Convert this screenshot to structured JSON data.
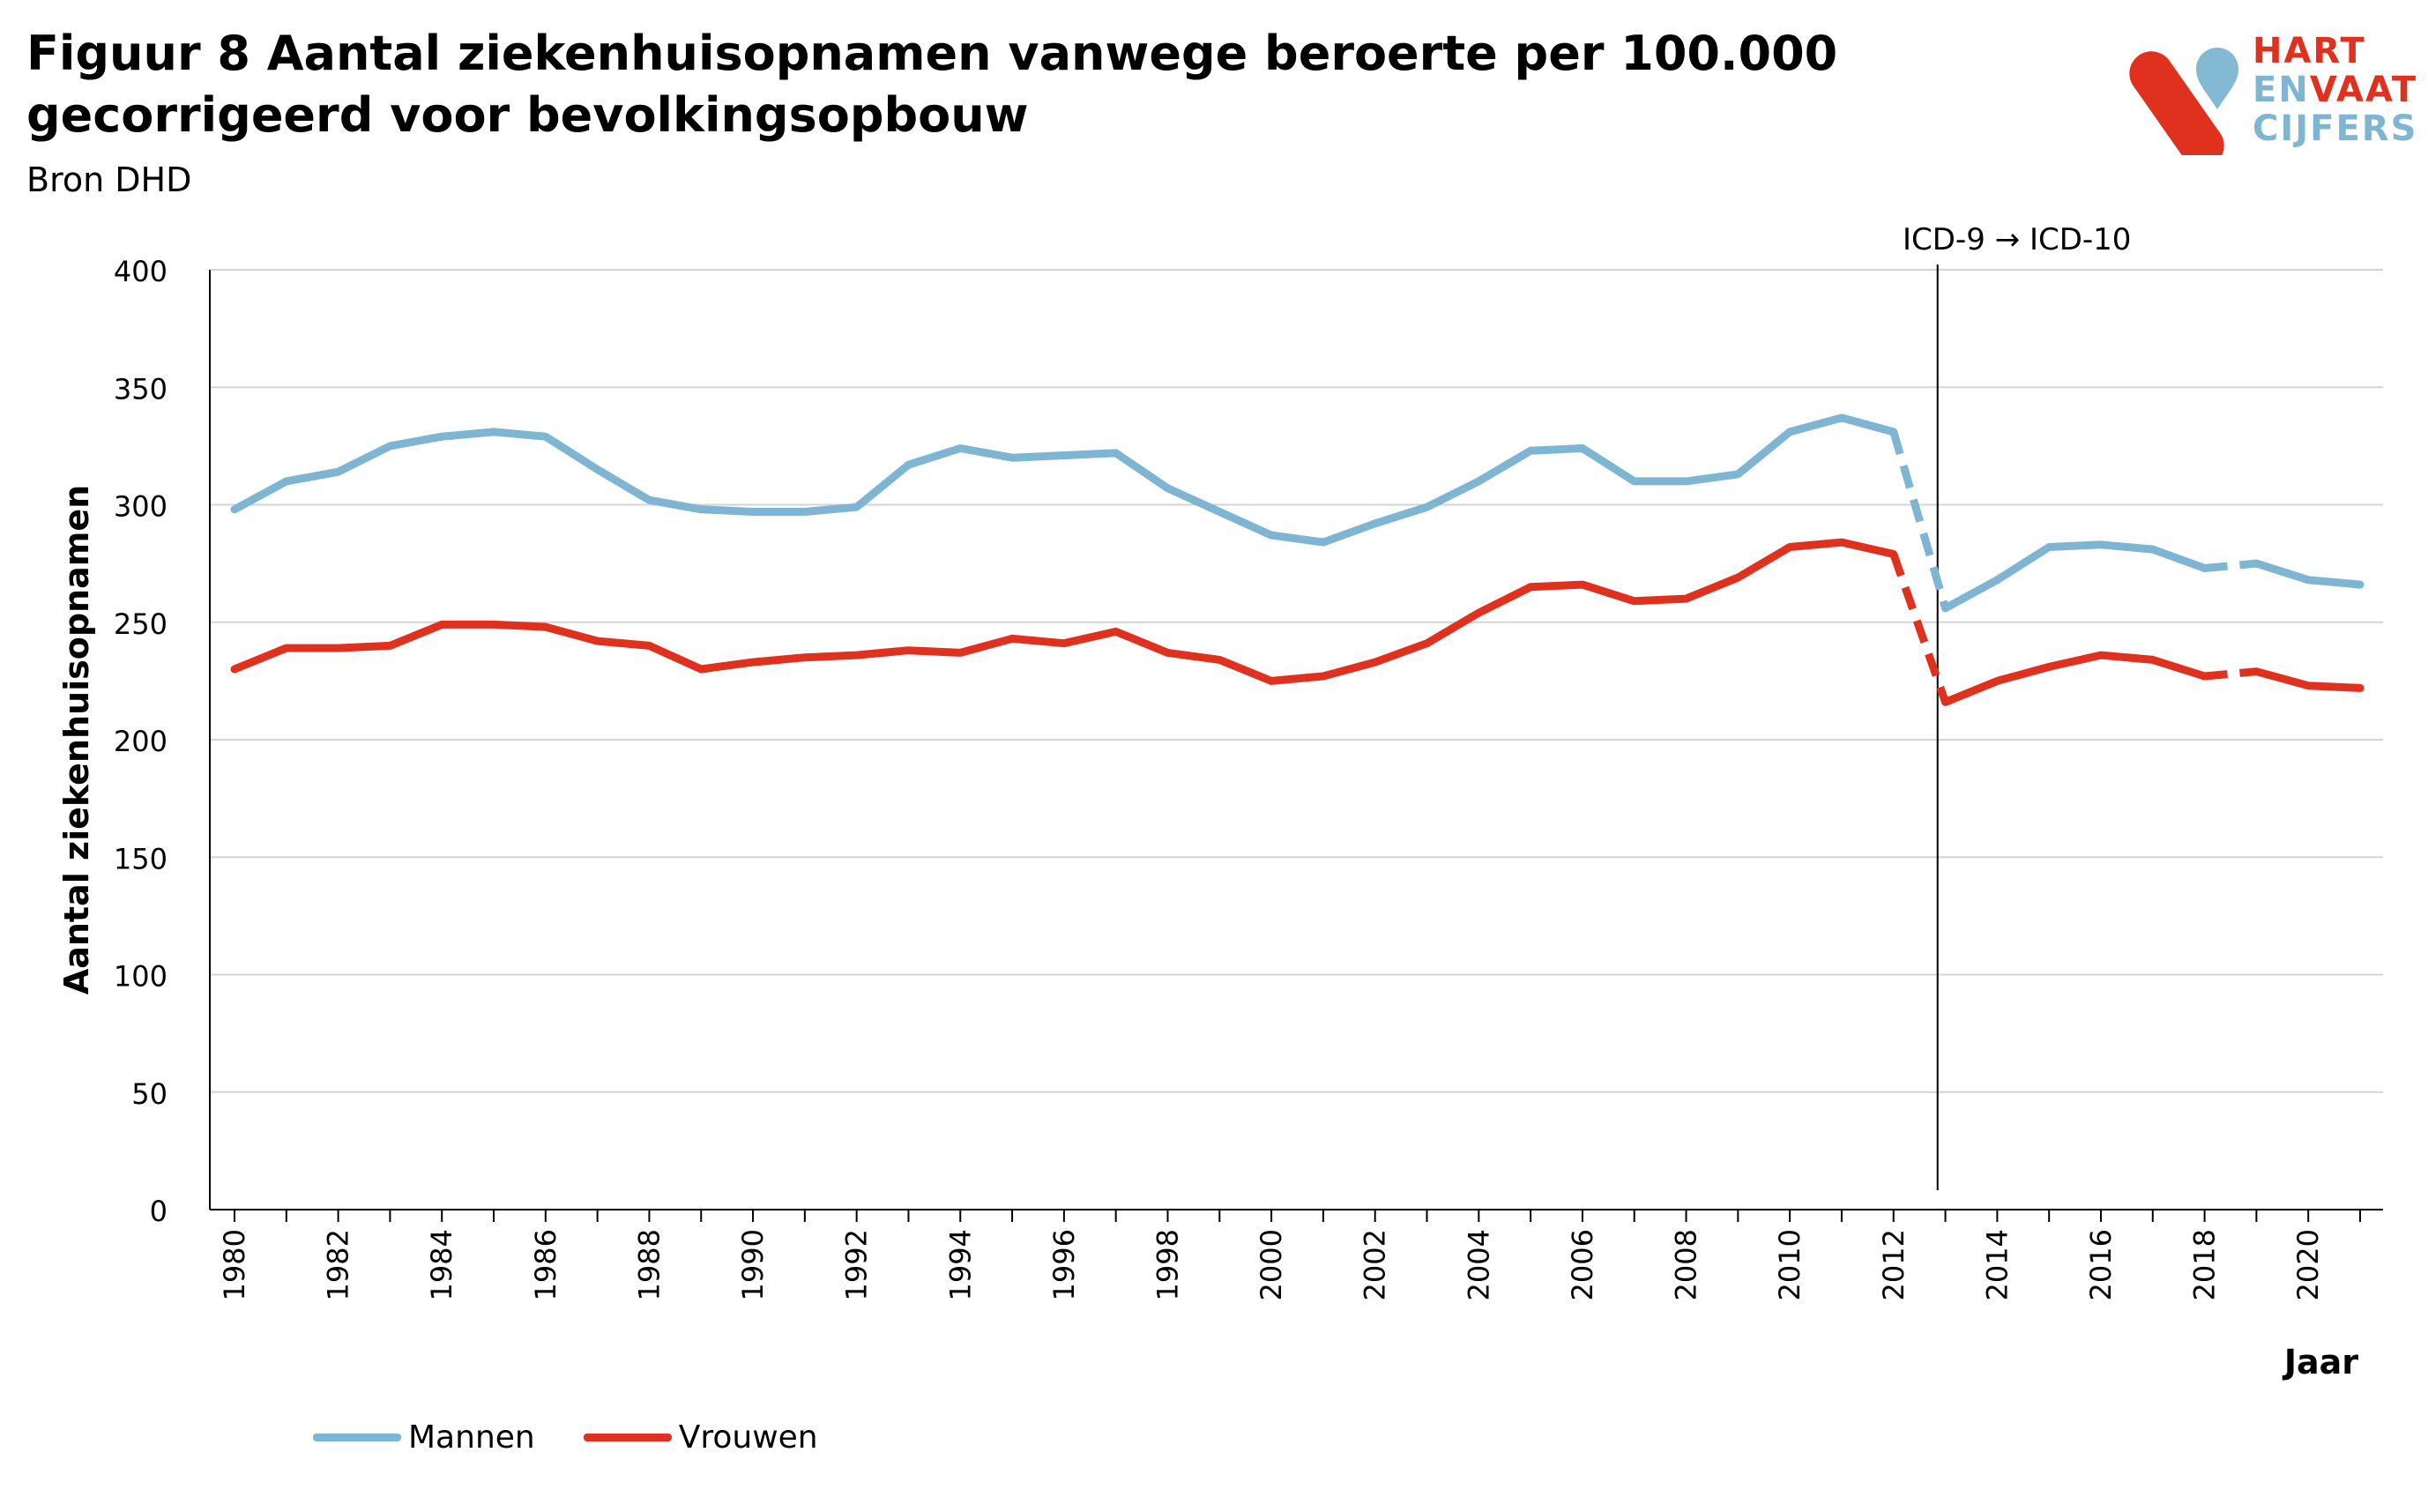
{
  "header": {
    "title_line1": "Figuur 8 Aantal ziekenhuisopnamen vanwege beroerte per 100.000",
    "title_line2": "gecorrigeerd voor bevolkingsopbouw",
    "source": "Bron DHD"
  },
  "logo": {
    "line1": "HART",
    "line2_a": "EN",
    "line2_b": "VAAT",
    "line3": "CIJFERS",
    "red": "#e0301e",
    "blue": "#7db5d2"
  },
  "chart_data": {
    "type": "line",
    "ylabel": "Aantal ziekenhuisopnamen",
    "xlabel": "Jaar",
    "ylim": [
      0,
      400
    ],
    "yticks": [
      0,
      50,
      100,
      150,
      200,
      250,
      300,
      350,
      400
    ],
    "xlim": [
      1980,
      2021
    ],
    "xticks": [
      1980,
      1982,
      1984,
      1986,
      1988,
      1990,
      1992,
      1994,
      1996,
      1998,
      2000,
      2002,
      2004,
      2006,
      2008,
      2010,
      2012,
      2014,
      2016,
      2018,
      2020
    ],
    "grid": true,
    "legend_position": "bottom-left",
    "annotation": {
      "text": "ICD-9 → ICD-10",
      "x": 2012.85
    },
    "dashed_segments": [
      [
        2012,
        2013
      ],
      [
        2018,
        2019
      ]
    ],
    "x": [
      1980,
      1981,
      1982,
      1983,
      1984,
      1985,
      1986,
      1987,
      1988,
      1989,
      1990,
      1991,
      1992,
      1993,
      1994,
      1995,
      1996,
      1997,
      1998,
      1999,
      2000,
      2001,
      2002,
      2003,
      2004,
      2005,
      2006,
      2007,
      2008,
      2009,
      2010,
      2011,
      2012,
      2013,
      2014,
      2015,
      2016,
      2017,
      2018,
      2019,
      2020,
      2021
    ],
    "series": [
      {
        "name": "Mannen",
        "color": "#7db5d2",
        "values": [
          298,
          310,
          314,
          325,
          329,
          331,
          329,
          315,
          302,
          298,
          297,
          297,
          299,
          317,
          324,
          320,
          321,
          322,
          307,
          297,
          287,
          284,
          292,
          299,
          310,
          323,
          324,
          310,
          310,
          313,
          331,
          337,
          331,
          256,
          268,
          282,
          283,
          281,
          273,
          275,
          268,
          266
        ]
      },
      {
        "name": "Vrouwen",
        "color": "#e0301e",
        "values": [
          230,
          239,
          239,
          240,
          249,
          249,
          248,
          242,
          240,
          230,
          233,
          235,
          236,
          238,
          237,
          243,
          241,
          246,
          237,
          234,
          225,
          227,
          233,
          241,
          254,
          265,
          266,
          259,
          260,
          269,
          282,
          284,
          279,
          216,
          225,
          231,
          236,
          234,
          227,
          229,
          223,
          222
        ]
      }
    ]
  }
}
